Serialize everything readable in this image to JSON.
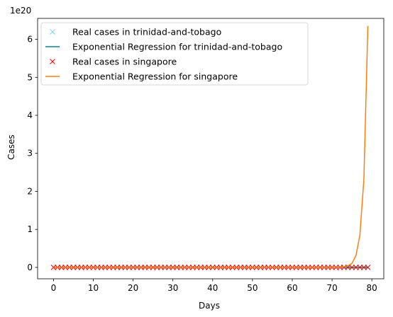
{
  "chart_data": {
    "type": "line",
    "title": "",
    "xlabel": "Days",
    "ylabel": "Cases",
    "offset_label": "1e20",
    "xlim": [
      -4,
      83
    ],
    "ylim": [
      -0.3,
      6.55
    ],
    "y_scale_factor": 1e+20,
    "xticks": [
      0,
      10,
      20,
      30,
      40,
      50,
      60,
      70,
      80
    ],
    "yticks": [
      0,
      1,
      2,
      3,
      4,
      5,
      6
    ],
    "grid": false,
    "legend_position": "top-left",
    "x": [
      0,
      1,
      2,
      3,
      4,
      5,
      6,
      7,
      8,
      9,
      10,
      11,
      12,
      13,
      14,
      15,
      16,
      17,
      18,
      19,
      20,
      21,
      22,
      23,
      24,
      25,
      26,
      27,
      28,
      29,
      30,
      31,
      32,
      33,
      34,
      35,
      36,
      37,
      38,
      39,
      40,
      41,
      42,
      43,
      44,
      45,
      46,
      47,
      48,
      49,
      50,
      51,
      52,
      53,
      54,
      55,
      56,
      57,
      58,
      59,
      60,
      61,
      62,
      63,
      64,
      65,
      66,
      67,
      68,
      69,
      70,
      71,
      72,
      73,
      74,
      75,
      76,
      77,
      78,
      79
    ],
    "series": [
      {
        "name": "Real cases in trinidad-and-tobago",
        "kind": "markers",
        "marker": "x",
        "color": "#87ceeb",
        "values": [
          0,
          0,
          0,
          0,
          0,
          0,
          0,
          0,
          0,
          0,
          0,
          0,
          0,
          0,
          0,
          0,
          0,
          0,
          0,
          0,
          0,
          0,
          0,
          0,
          0,
          0,
          0,
          0,
          0,
          0,
          0,
          0,
          0,
          0,
          0,
          0,
          0,
          0,
          0,
          0,
          0,
          0,
          0,
          0,
          0,
          0,
          0,
          0,
          0,
          0,
          0,
          0,
          0,
          0,
          0,
          0,
          0,
          0,
          0,
          0,
          0,
          0,
          0,
          0,
          0,
          0,
          0,
          0,
          0,
          0,
          0,
          0,
          0,
          0,
          0,
          0,
          0,
          0,
          0,
          0
        ]
      },
      {
        "name": "Exponential Regression for trinidad-and-tobago",
        "kind": "line",
        "color": "#008b8b",
        "values": [
          0,
          0,
          0,
          0,
          0,
          0,
          0,
          0,
          0,
          0,
          0,
          0,
          0,
          0,
          0,
          0,
          0,
          0,
          0,
          0,
          0,
          0,
          0,
          0,
          0,
          0,
          0,
          0,
          0,
          0,
          0,
          0,
          0,
          0,
          0,
          0,
          0,
          0,
          0,
          0,
          0,
          0,
          0,
          0,
          0,
          0,
          0,
          0,
          0,
          0,
          0,
          0,
          0,
          0,
          0,
          0,
          0,
          0,
          0,
          0,
          0,
          0,
          0,
          0,
          0,
          0,
          0,
          0,
          0,
          0,
          0,
          0,
          0,
          0,
          0,
          0,
          0,
          0,
          0,
          0
        ]
      },
      {
        "name": "Real cases in singapore",
        "kind": "markers",
        "marker": "x",
        "color": "#ff0000",
        "values": [
          0,
          0,
          0,
          0,
          0,
          0,
          0,
          0,
          0,
          0,
          0,
          0,
          0,
          0,
          0,
          0,
          0,
          0,
          0,
          0,
          0,
          0,
          0,
          0,
          0,
          0,
          0,
          0,
          0,
          0,
          0,
          0,
          0,
          0,
          0,
          0,
          0,
          0,
          0,
          0,
          0,
          0,
          0,
          0,
          0,
          0,
          0,
          0,
          0,
          0,
          0,
          0,
          0,
          0,
          0,
          0,
          0,
          0,
          0,
          0,
          0,
          0,
          0,
          0,
          0,
          0,
          0,
          0,
          0,
          0,
          0,
          0,
          0,
          0,
          0,
          0,
          0,
          0,
          0,
          0
        ]
      },
      {
        "name": "Exponential Regression for singapore",
        "kind": "line",
        "color": "#ff7f0e",
        "values": [
          0,
          0,
          0,
          0,
          0,
          0,
          0,
          0,
          0,
          0,
          0,
          0,
          0,
          0,
          0,
          0,
          0,
          0,
          0,
          0,
          0,
          0,
          0,
          0,
          0,
          0,
          0,
          0,
          0,
          0,
          0,
          0,
          0,
          0,
          0,
          0,
          0,
          0,
          0,
          0,
          0,
          0,
          0,
          0,
          0,
          0,
          0,
          0,
          0,
          0,
          0,
          0,
          0,
          0,
          0,
          0,
          0,
          0,
          0,
          0,
          0,
          0,
          0,
          0,
          0,
          0,
          0,
          0,
          0,
          0,
          0.0004,
          0.0015,
          0.0057,
          0.0166,
          0.0435,
          0.1071,
          0.31,
          0.85,
          2.32,
          6.35
        ]
      }
    ]
  }
}
